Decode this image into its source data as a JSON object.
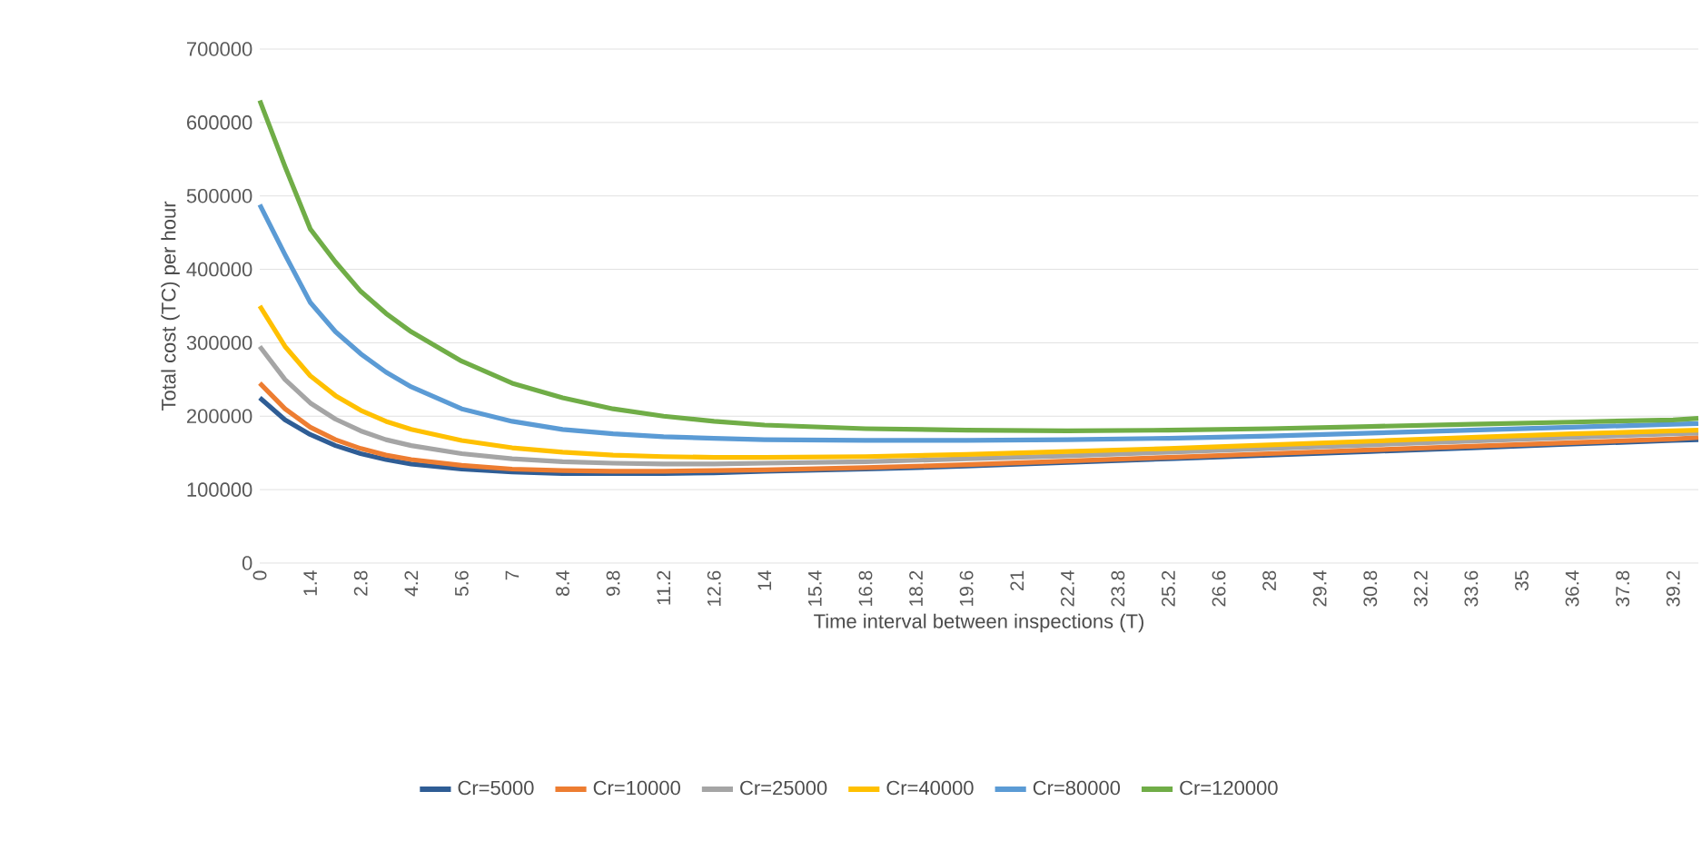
{
  "chart_data": {
    "type": "line",
    "xlabel": "Time interval between  inspections (T)",
    "ylabel": "Total cost (TC) per hour",
    "x": [
      0,
      0.7,
      1.4,
      2.1,
      2.8,
      3.5,
      4.2,
      5.6,
      7,
      8.4,
      9.8,
      11.2,
      12.6,
      14,
      16.8,
      19.6,
      22.4,
      25.2,
      28,
      30.8,
      33.6,
      36.4,
      39.2,
      39.9
    ],
    "series": [
      {
        "name": "Cr=5000",
        "color": "#2f5d95",
        "values": [
          225000,
          195000,
          175000,
          160000,
          149000,
          141000,
          135000,
          128000,
          124000,
          122000,
          122000,
          122000,
          123000,
          125000,
          128000,
          132000,
          137000,
          142000,
          147000,
          152000,
          157000,
          162000,
          167000,
          168000
        ]
      },
      {
        "name": "Cr=10000",
        "color": "#ed7d31",
        "values": [
          245000,
          210000,
          185000,
          168000,
          156000,
          147000,
          141000,
          133000,
          128000,
          126000,
          125000,
          125000,
          126000,
          127000,
          130000,
          134000,
          139000,
          144000,
          149000,
          154000,
          159000,
          164000,
          169000,
          171000
        ]
      },
      {
        "name": "Cr=25000",
        "color": "#a5a5a5",
        "values": [
          295000,
          250000,
          218000,
          196000,
          180000,
          168000,
          160000,
          149000,
          142000,
          138000,
          136000,
          135000,
          135000,
          136000,
          138000,
          142000,
          146000,
          151000,
          156000,
          161000,
          166000,
          171000,
          176000,
          177000
        ]
      },
      {
        "name": "Cr=40000",
        "color": "#ffc000",
        "values": [
          350000,
          295000,
          255000,
          228000,
          208000,
          193000,
          182000,
          167000,
          157000,
          151000,
          147000,
          145000,
          144000,
          144000,
          145000,
          148000,
          152000,
          156000,
          161000,
          166000,
          171000,
          176000,
          180000,
          181000
        ]
      },
      {
        "name": "Cr=80000",
        "color": "#5b9bd5",
        "values": [
          488000,
          420000,
          355000,
          315000,
          285000,
          260000,
          240000,
          210000,
          193000,
          182000,
          176000,
          172000,
          170000,
          168000,
          167000,
          167000,
          168000,
          170000,
          173000,
          177000,
          181000,
          185000,
          189000,
          190000
        ]
      },
      {
        "name": "Cr=120000",
        "color": "#70ad47",
        "values": [
          630000,
          540000,
          455000,
          410000,
          370000,
          340000,
          315000,
          275000,
          245000,
          225000,
          210000,
          200000,
          193000,
          188000,
          183000,
          181000,
          180000,
          181000,
          183000,
          186000,
          189000,
          192000,
          195000,
          197000
        ]
      }
    ],
    "xlim": [
      0,
      39.9
    ],
    "xticks": [
      0,
      1.4,
      2.8,
      4.2,
      5.6,
      7,
      8.4,
      9.8,
      11.2,
      12.6,
      14,
      15.4,
      16.8,
      18.2,
      19.6,
      21,
      22.4,
      23.8,
      25.2,
      26.6,
      28,
      29.4,
      30.8,
      32.2,
      33.6,
      35,
      36.4,
      37.8,
      39.2
    ],
    "ylim": [
      0,
      700000
    ],
    "yticks": [
      0,
      100000,
      200000,
      300000,
      400000,
      500000,
      600000,
      700000
    ],
    "grid": "y",
    "legend": "bottom",
    "marker": "none",
    "line_style": "solid"
  }
}
